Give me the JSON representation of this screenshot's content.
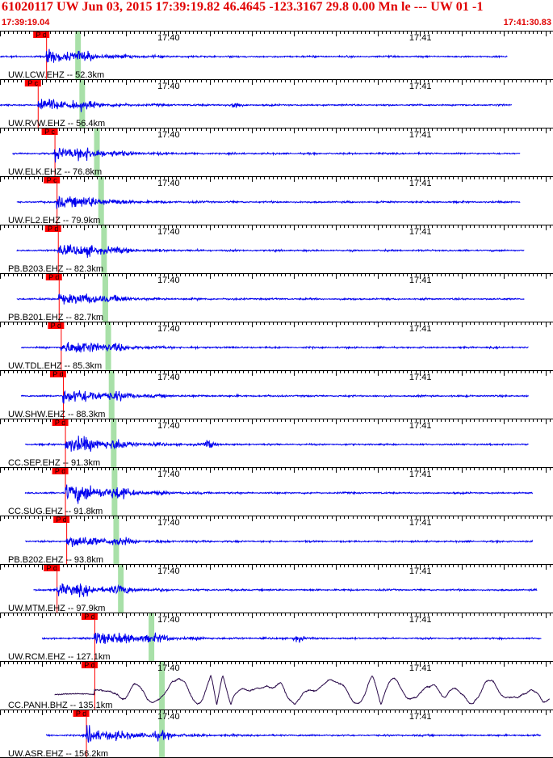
{
  "header": {
    "title": "61020117 UW Jun 03, 2015 17:39:19.82   46.4645 -123.3167 29.8 0.00 Mn le --- UW 01   -1",
    "time_start": "17:39:19.04",
    "time_end": "17:41:30.83"
  },
  "colors": {
    "title": "#e00000",
    "trace": "#0000ee",
    "trace_long_period": "#2a0a4a",
    "pick_flag": "#ff0000",
    "pick_line": "#ff0000",
    "s_window": "#a8e0a8",
    "grid": "#000000"
  },
  "axis": {
    "minute_labels": [
      "17:40",
      "17:41"
    ],
    "minute_offsets_s": [
      40.18,
      100.18
    ],
    "total_seconds": 131.79
  },
  "stations": [
    {
      "label": "UW.LCW.EHZ -- 52.3km",
      "pick_label": "P d",
      "pick_s": 11.0,
      "s_s": 18.5,
      "amp": 0.45,
      "end_s": 121,
      "start_s": 0,
      "type": "sp"
    },
    {
      "label": "UW.RVW.EHZ -- 56.4km",
      "pick_label": "P c",
      "pick_s": 9.0,
      "s_s": 19.5,
      "amp": 0.45,
      "end_s": 122,
      "start_s": 0,
      "type": "sp",
      "burst_s": 56
    },
    {
      "label": "UW.ELK.EHZ -- 76.8km",
      "pick_label": "P c",
      "pick_s": 13.0,
      "s_s": 23.0,
      "amp": 0.55,
      "end_s": 124,
      "start_s": 3,
      "type": "sp"
    },
    {
      "label": "UW.FL2.EHZ -- 79.9km",
      "pick_label": "P c",
      "pick_s": 13.5,
      "s_s": 24.0,
      "amp": 0.5,
      "end_s": 124,
      "start_s": 4,
      "type": "sp"
    },
    {
      "label": "PB.B203.EHZ -- 82.3km",
      "pick_label": "P d",
      "pick_s": 13.8,
      "s_s": 24.7,
      "amp": 0.5,
      "end_s": 125,
      "start_s": 4,
      "type": "sp"
    },
    {
      "label": "PB.B201.EHZ -- 82.7km",
      "pick_label": "P d",
      "pick_s": 14.0,
      "s_s": 25.0,
      "amp": 0.45,
      "end_s": 125,
      "start_s": 4,
      "type": "sp"
    },
    {
      "label": "UW.TDL.EHZ -- 85.3km",
      "pick_label": "P d",
      "pick_s": 14.5,
      "s_s": 25.7,
      "amp": 0.55,
      "end_s": 126,
      "start_s": 5,
      "type": "sp"
    },
    {
      "label": "UW.SHW.EHZ -- 88.3km",
      "pick_label": "P d",
      "pick_s": 15.0,
      "s_s": 26.5,
      "amp": 0.6,
      "end_s": 126,
      "start_s": 5,
      "type": "sp"
    },
    {
      "label": "CC.SEP.EHZ -- 91.3km",
      "pick_label": "P d",
      "pick_s": 15.5,
      "s_s": 27.0,
      "amp": 0.65,
      "end_s": 126,
      "start_s": 6,
      "type": "sp",
      "burst_s": 50
    },
    {
      "label": "CC.SUG.EHZ -- 91.8km",
      "pick_label": "P d",
      "pick_s": 15.5,
      "s_s": 27.2,
      "amp": 0.75,
      "end_s": 127,
      "start_s": 6,
      "type": "sp"
    },
    {
      "label": "PB.B202.EHZ -- 93.8km",
      "pick_label": "P d",
      "pick_s": 15.8,
      "s_s": 27.6,
      "amp": 0.45,
      "end_s": 127,
      "start_s": 6,
      "type": "sp"
    },
    {
      "label": "UW.MTM.EHZ -- 97.9km",
      "pick_label": "P d",
      "pick_s": 13.5,
      "s_s": 28.7,
      "amp": 0.55,
      "end_s": 128,
      "start_s": 8,
      "type": "sp"
    },
    {
      "label": "UW.RCM.EHZ -- 127.1km",
      "pick_label": "P d",
      "pick_s": 22.5,
      "s_s": 36.0,
      "amp": 0.55,
      "end_s": 129,
      "start_s": 10,
      "type": "sp",
      "burst_s": 71
    },
    {
      "label": "CC.PANH.BHZ -- 135.1km",
      "pick_label": "P d",
      "pick_s": 22.5,
      "s_s": 38.5,
      "amp": 0.6,
      "end_s": 131,
      "start_s": 13,
      "type": "lp"
    },
    {
      "label": "UW.ASR.EHZ -- 156.2km",
      "pick_label": "P d",
      "pick_s": 20.5,
      "s_s": 38.5,
      "amp": 0.55,
      "end_s": 129,
      "start_s": 11,
      "type": "sp"
    }
  ]
}
